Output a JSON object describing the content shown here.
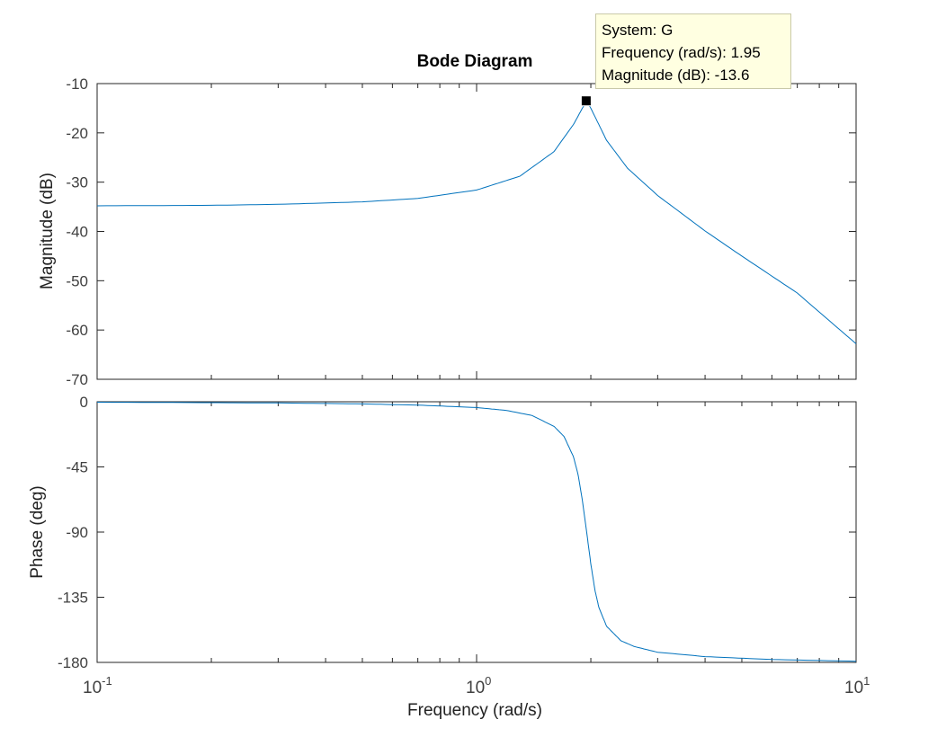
{
  "figure": {
    "title": "Bode Diagram",
    "xlabel": "Frequency  (rad/s)",
    "x_tick_labels": [
      {
        "base": "10",
        "exp": "-1"
      },
      {
        "base": "10",
        "exp": "0"
      },
      {
        "base": "10",
        "exp": "1"
      }
    ]
  },
  "datatip": {
    "system": "System: G",
    "frequency": "Frequency (rad/s): 1.95",
    "magnitude": "Magnitude (dB): -13.6"
  },
  "chart_data": [
    {
      "type": "line",
      "panel": "magnitude",
      "title": "Bode Diagram",
      "xlabel": "Frequency  (rad/s)",
      "ylabel": "Magnitude (dB)",
      "xscale": "log",
      "xlim": [
        0.1,
        10
      ],
      "ylim": [
        -70,
        -10
      ],
      "yticks": [
        -10,
        -20,
        -30,
        -40,
        -50,
        -60,
        -70
      ],
      "series_color": "#0072bd",
      "series": [
        {
          "x": [
            0.1,
            0.2,
            0.3,
            0.5,
            0.7,
            1.0,
            1.3,
            1.6,
            1.8,
            1.9,
            1.95,
            2.0,
            2.2,
            2.5,
            3.0,
            4.0,
            5.0,
            7.0,
            10.0
          ],
          "y": [
            -34.8,
            -34.7,
            -34.5,
            -34.0,
            -33.3,
            -31.6,
            -28.8,
            -23.8,
            -18.3,
            -15.0,
            -13.6,
            -15.0,
            -21.5,
            -27.2,
            -32.7,
            -39.9,
            -45.0,
            -52.5,
            -62.8
          ]
        }
      ],
      "datatip": {
        "x": 1.95,
        "y": -13.6
      }
    },
    {
      "type": "line",
      "panel": "phase",
      "xlabel": "Frequency  (rad/s)",
      "ylabel": "Phase (deg)",
      "xscale": "log",
      "xlim": [
        0.1,
        10
      ],
      "ylim": [
        -180,
        0
      ],
      "yticks": [
        0,
        -45,
        -90,
        -135,
        -180
      ],
      "series_color": "#0072bd",
      "series": [
        {
          "x": [
            0.1,
            0.3,
            0.5,
            0.7,
            1.0,
            1.2,
            1.4,
            1.6,
            1.7,
            1.8,
            1.85,
            1.9,
            1.95,
            2.0,
            2.05,
            2.1,
            2.2,
            2.4,
            2.6,
            3.0,
            4.0,
            6.0,
            10.0
          ],
          "y": [
            -0.3,
            -0.8,
            -1.5,
            -2.3,
            -4.0,
            -6.0,
            -9.5,
            -17.0,
            -24.0,
            -38.0,
            -50.0,
            -68.0,
            -90.0,
            -112.0,
            -130.0,
            -142.0,
            -155.0,
            -165.0,
            -169.0,
            -173.0,
            -176.0,
            -178.0,
            -179.2
          ]
        }
      ]
    }
  ]
}
